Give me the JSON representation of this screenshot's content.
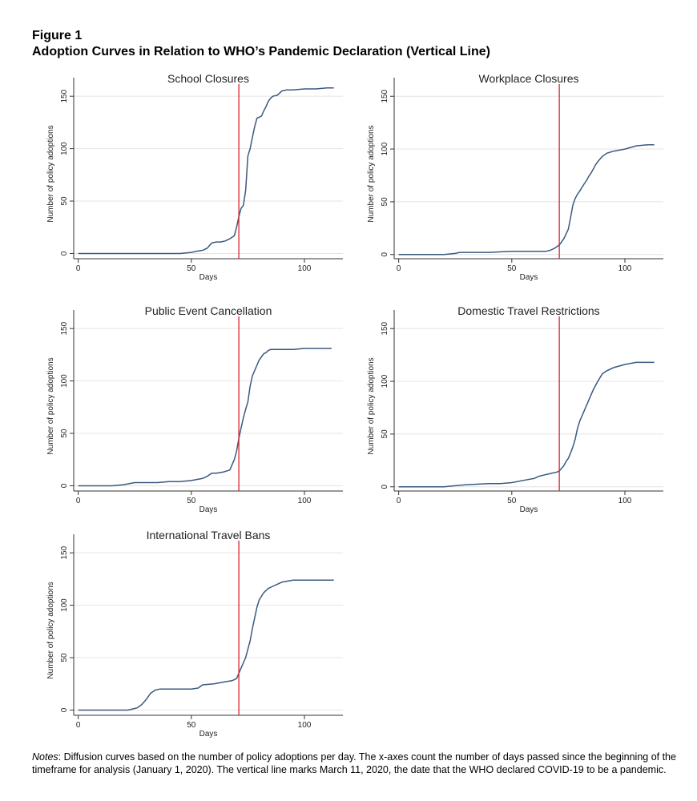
{
  "figure": {
    "label": "Figure 1",
    "title": "Adoption Curves in Relation to WHO’s Pandemic Declaration (Vertical Line)"
  },
  "notes": {
    "prefix": "Notes",
    "text": ": Diffusion curves based on the number of policy adoptions per day. The x-axes count the number of days passed since the beginning of the timeframe for analysis (January 1, 2020). The vertical line marks March 11, 2020, the date that the WHO declared COVID-19 to be a pandemic."
  },
  "style": {
    "line_color": "#3a5a7f",
    "marker_color": "#d6242f",
    "grid_color": "#e4e4e4"
  },
  "chart_data": [
    {
      "type": "line",
      "title": "School Closures",
      "xlabel": "Days",
      "ylabel": "Number of policy adoptions",
      "xticks": [
        0,
        50,
        100
      ],
      "yticks": [
        0,
        50,
        100,
        150
      ],
      "xlim": [
        -2,
        117
      ],
      "ylim": [
        -5,
        157
      ],
      "grid": true,
      "vline_x": 71,
      "x": [
        0,
        45,
        50,
        52,
        55,
        57,
        59,
        61,
        63,
        65,
        67,
        69,
        70,
        71,
        72,
        73,
        74,
        75,
        76,
        77,
        78,
        79,
        80,
        81,
        82,
        83,
        84,
        85,
        86,
        88,
        90,
        92,
        95,
        100,
        105,
        110,
        113
      ],
      "values": [
        0,
        0,
        1,
        2,
        3,
        5,
        10,
        11,
        11,
        12,
        14,
        17,
        25,
        35,
        43,
        46,
        60,
        93,
        100,
        111,
        121,
        129,
        130,
        131,
        136,
        140,
        145,
        148,
        150,
        151,
        155,
        156,
        156,
        157,
        157,
        158,
        158
      ]
    },
    {
      "type": "line",
      "title": "Workplace Closures",
      "xlabel": "Days",
      "ylabel": "Number of policy adoptions",
      "xticks": [
        0,
        50,
        100
      ],
      "yticks": [
        0,
        50,
        100,
        150
      ],
      "xlim": [
        -2,
        117
      ],
      "ylim": [
        -4,
        157
      ],
      "grid": true,
      "vline_x": 71,
      "x": [
        0,
        20,
        25,
        27,
        30,
        40,
        50,
        55,
        60,
        65,
        67,
        69,
        71,
        73,
        75,
        76,
        77,
        78,
        79,
        80,
        82,
        83,
        84,
        85,
        86,
        87,
        88,
        90,
        92,
        95,
        100,
        105,
        110,
        113
      ],
      "values": [
        0,
        0,
        1,
        2,
        2,
        2,
        3,
        3,
        3,
        3,
        4,
        6,
        9,
        15,
        24,
        35,
        47,
        53,
        57,
        60,
        67,
        70,
        74,
        77,
        81,
        85,
        88,
        93,
        96,
        98,
        100,
        103,
        104,
        104
      ]
    },
    {
      "type": "line",
      "title": "Public Event Cancellation",
      "xlabel": "Days",
      "ylabel": "Number of policy adoptions",
      "xticks": [
        0,
        50,
        100
      ],
      "yticks": [
        0,
        50,
        100,
        150
      ],
      "xlim": [
        -2,
        117
      ],
      "ylim": [
        -5,
        157
      ],
      "grid": true,
      "vline_x": 71,
      "x": [
        0,
        15,
        20,
        25,
        30,
        35,
        40,
        45,
        50,
        55,
        57,
        59,
        61,
        64,
        67,
        69,
        70,
        71,
        72,
        73,
        74,
        75,
        76,
        77,
        78,
        79,
        80,
        81,
        82,
        83,
        84,
        85,
        90,
        95,
        100,
        105,
        112
      ],
      "values": [
        0,
        0,
        1,
        3,
        3,
        3,
        4,
        4,
        5,
        7,
        9,
        12,
        12,
        13,
        15,
        25,
        33,
        45,
        55,
        65,
        73,
        80,
        95,
        105,
        110,
        115,
        120,
        123,
        126,
        127,
        129,
        130,
        130,
        130,
        131,
        131,
        131
      ]
    },
    {
      "type": "line",
      "title": "Domestic Travel Restrictions",
      "xlabel": "Days",
      "ylabel": "Number of policy adoptions",
      "xticks": [
        0,
        50,
        100
      ],
      "yticks": [
        0,
        50,
        100,
        150
      ],
      "xlim": [
        -2,
        117
      ],
      "ylim": [
        -4,
        157
      ],
      "grid": true,
      "vline_x": 71,
      "x": [
        0,
        20,
        25,
        30,
        40,
        45,
        50,
        55,
        60,
        62,
        64,
        66,
        68,
        70,
        71,
        73,
        74,
        75,
        76,
        77,
        78,
        79,
        80,
        82,
        84,
        86,
        88,
        90,
        92,
        95,
        100,
        105,
        110,
        113
      ],
      "values": [
        0,
        0,
        1,
        2,
        3,
        3,
        4,
        6,
        8,
        10,
        11,
        12,
        13,
        14,
        15,
        20,
        24,
        27,
        32,
        38,
        45,
        55,
        62,
        72,
        82,
        92,
        100,
        107,
        110,
        113,
        116,
        118,
        118,
        118
      ]
    },
    {
      "type": "line",
      "title": "International Travel Bans",
      "xlabel": "Days",
      "ylabel": "Number of policy adoptions",
      "xticks": [
        0,
        50,
        100
      ],
      "yticks": [
        0,
        50,
        100,
        150
      ],
      "xlim": [
        -2,
        117
      ],
      "ylim": [
        -5,
        157
      ],
      "grid": true,
      "vline_x": 71,
      "x": [
        0,
        20,
        22,
        24,
        26,
        28,
        30,
        32,
        34,
        36,
        40,
        45,
        50,
        53,
        55,
        60,
        65,
        68,
        70,
        72,
        74,
        75,
        76,
        77,
        78,
        79,
        80,
        82,
        84,
        86,
        88,
        90,
        95,
        100,
        105,
        113
      ],
      "values": [
        0,
        0,
        0,
        1,
        2,
        5,
        10,
        16,
        19,
        20,
        20,
        20,
        20,
        21,
        24,
        25,
        27,
        28,
        30,
        40,
        50,
        58,
        66,
        78,
        88,
        98,
        105,
        112,
        116,
        118,
        120,
        122,
        124,
        124,
        124,
        124
      ]
    }
  ]
}
